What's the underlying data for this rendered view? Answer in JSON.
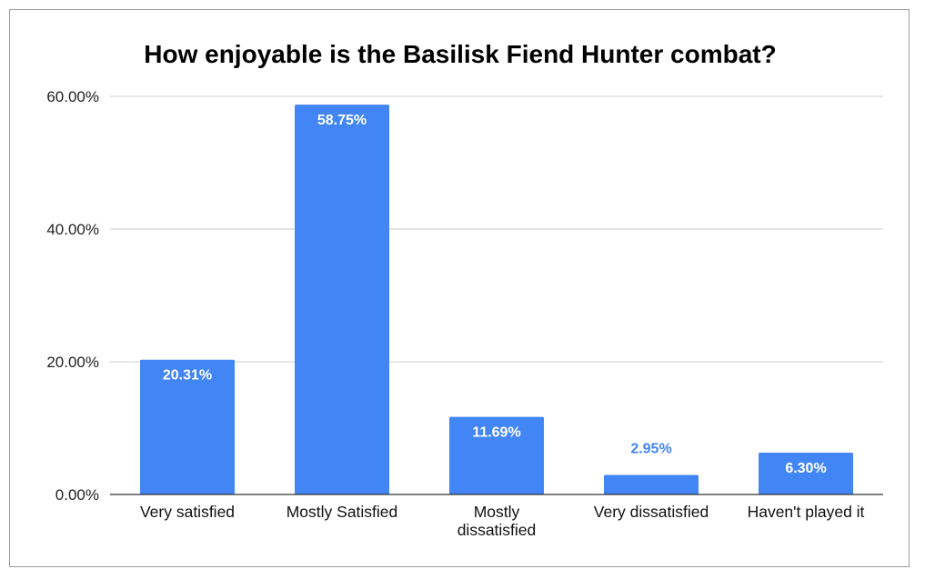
{
  "chart_data": {
    "type": "bar",
    "title": "How enjoyable is the Basilisk Fiend Hunter combat?",
    "xlabel": "",
    "ylabel": "",
    "categories": [
      [
        "Very satisfied"
      ],
      [
        "Mostly Satisfied"
      ],
      [
        "Mostly",
        "dissatisfied"
      ],
      [
        "Very dissatisfied"
      ],
      [
        "Haven't played it"
      ]
    ],
    "values": [
      20.31,
      58.75,
      11.69,
      2.95,
      6.3
    ],
    "data_labels": [
      "20.31%",
      "58.75%",
      "11.69%",
      "2.95%",
      "6.30%"
    ],
    "ylim": [
      0,
      60
    ],
    "yticks": [
      0,
      20,
      40,
      60
    ],
    "ytick_labels": [
      "0.00%",
      "20.00%",
      "40.00%",
      "60.00%"
    ],
    "grid": true,
    "legend": "none",
    "colors": {
      "bar": "#4285f4",
      "label_inside": "#ffffff",
      "label_outside": "#4285f4",
      "grid": "#cccccc",
      "axis": "#333333"
    }
  }
}
